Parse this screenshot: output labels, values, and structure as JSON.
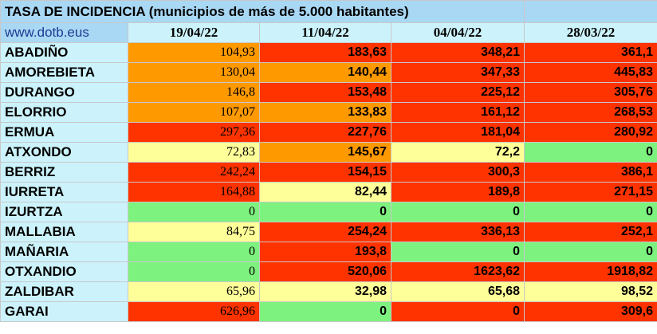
{
  "title": "TASA DE INCIDENCIA  (municipios de más de 5.000 habitantes)",
  "website": "www.dotb.eus",
  "columns": [
    "19/04/22",
    "11/04/22",
    "04/04/22",
    "28/03/22"
  ],
  "palette": {
    "orange": "#ff9900",
    "red": "#ff3300",
    "yellow": "#ffff99",
    "green": "#7ef27e",
    "header_blue": "#a9d8f4",
    "cell_cyan": "#ccf3fb"
  },
  "rows": [
    {
      "name": "ABADIÑO",
      "values": [
        "104,93",
        "183,63",
        "348,21",
        "361,1"
      ],
      "colors": [
        "orange",
        "red",
        "red",
        "red"
      ]
    },
    {
      "name": "AMOREBIETA",
      "values": [
        "130,04",
        "140,44",
        "347,33",
        "445,83"
      ],
      "colors": [
        "orange",
        "orange",
        "red",
        "red"
      ]
    },
    {
      "name": "DURANGO",
      "values": [
        "146,8",
        "153,48",
        "225,12",
        "305,76"
      ],
      "colors": [
        "orange",
        "red",
        "red",
        "red"
      ]
    },
    {
      "name": "ELORRIO",
      "values": [
        "107,07",
        "133,83",
        "161,12",
        "268,53"
      ],
      "colors": [
        "orange",
        "orange",
        "red",
        "red"
      ]
    },
    {
      "name": "ERMUA",
      "values": [
        "297,36",
        "227,76",
        "181,04",
        "280,92"
      ],
      "colors": [
        "red",
        "red",
        "red",
        "red"
      ]
    },
    {
      "name": "ATXONDO",
      "values": [
        "72,83",
        "145,67",
        "72,2",
        "0"
      ],
      "colors": [
        "yellow",
        "orange",
        "yellow",
        "green"
      ]
    },
    {
      "name": "BERRIZ",
      "values": [
        "242,24",
        "154,15",
        "300,3",
        "386,1"
      ],
      "colors": [
        "red",
        "red",
        "red",
        "red"
      ]
    },
    {
      "name": "IURRETA",
      "values": [
        "164,88",
        "82,44",
        "189,8",
        "271,15"
      ],
      "colors": [
        "red",
        "yellow",
        "red",
        "red"
      ]
    },
    {
      "name": "IZURTZA",
      "values": [
        "0",
        "0",
        "0",
        "0"
      ],
      "colors": [
        "green",
        "green",
        "green",
        "green"
      ]
    },
    {
      "name": "MALLABIA",
      "values": [
        "84,75",
        "254,24",
        "336,13",
        "252,1"
      ],
      "colors": [
        "yellow",
        "red",
        "red",
        "red"
      ]
    },
    {
      "name": "MAÑARIA",
      "values": [
        "0",
        "193,8",
        "0",
        "0"
      ],
      "colors": [
        "green",
        "red",
        "green",
        "green"
      ]
    },
    {
      "name": "OTXANDIO",
      "values": [
        "0",
        "520,06",
        "1623,62",
        "1918,82"
      ],
      "colors": [
        "green",
        "red",
        "red",
        "red"
      ]
    },
    {
      "name": "ZALDIBAR",
      "values": [
        "65,96",
        "32,98",
        "65,68",
        "98,52"
      ],
      "colors": [
        "yellow",
        "yellow",
        "yellow",
        "yellow"
      ]
    },
    {
      "name": "GARAI",
      "values": [
        "626,96",
        "0",
        "0",
        "309,6"
      ],
      "colors": [
        "red",
        "green",
        "red",
        "red"
      ]
    }
  ]
}
